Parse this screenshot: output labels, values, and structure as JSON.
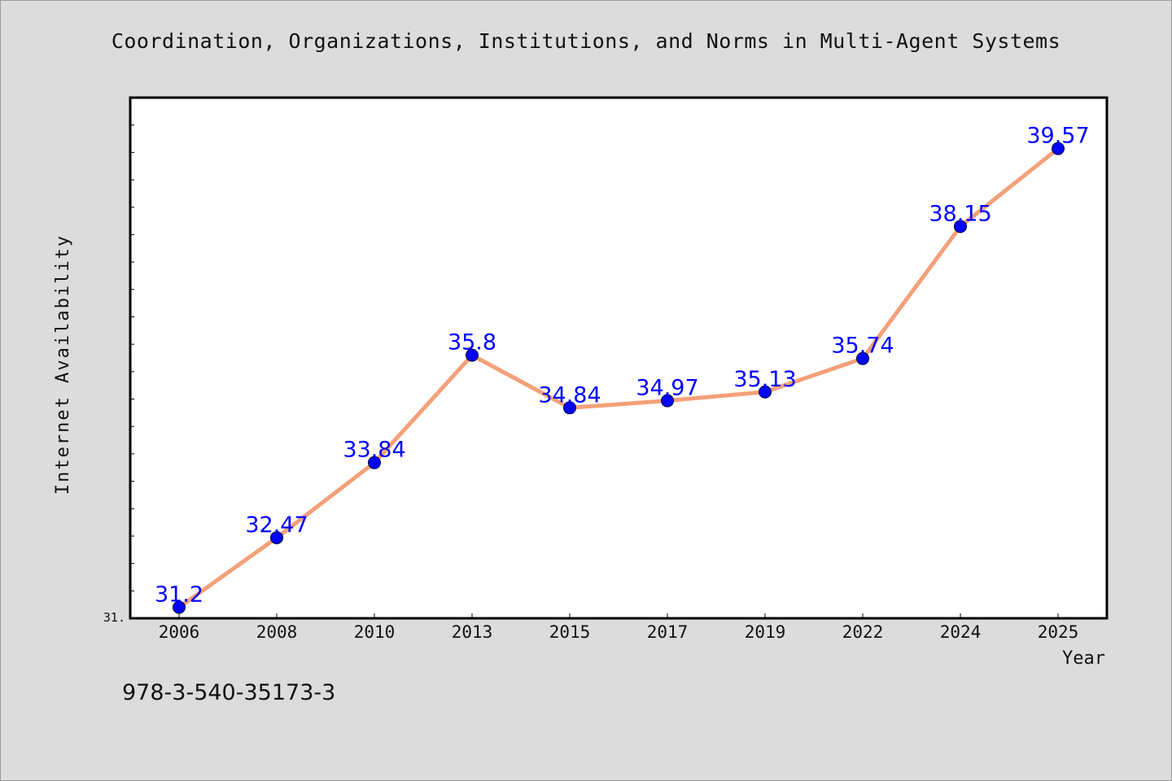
{
  "chart_data": {
    "type": "line",
    "title": "Coordination, Organizations, Institutions, and Norms in Multi-Agent Systems",
    "xlabel": "Year",
    "ylabel": "Internet Availability",
    "categories": [
      "2006",
      "2008",
      "2010",
      "2013",
      "2015",
      "2017",
      "2019",
      "2022",
      "2024",
      "2025"
    ],
    "values": [
      31.2,
      32.47,
      33.84,
      35.8,
      34.84,
      34.97,
      35.13,
      35.74,
      38.15,
      39.57
    ],
    "value_labels": [
      "31.2",
      "32.47",
      "33.84",
      "35.8",
      "34.84",
      "34.97",
      "35.13",
      "35.74",
      "38.15",
      "39.57"
    ],
    "ylim": [
      31,
      40.5
    ],
    "y_tick_labels": [
      "31."
    ],
    "grid": false,
    "legend": "none",
    "colors": {
      "line": "#f4a07a",
      "marker": "#0000ff",
      "data_label": "#0000ff",
      "background": "#dcdcdc",
      "plot_background": "#ffffff"
    }
  },
  "footnote": "978-3-540-35173-3"
}
